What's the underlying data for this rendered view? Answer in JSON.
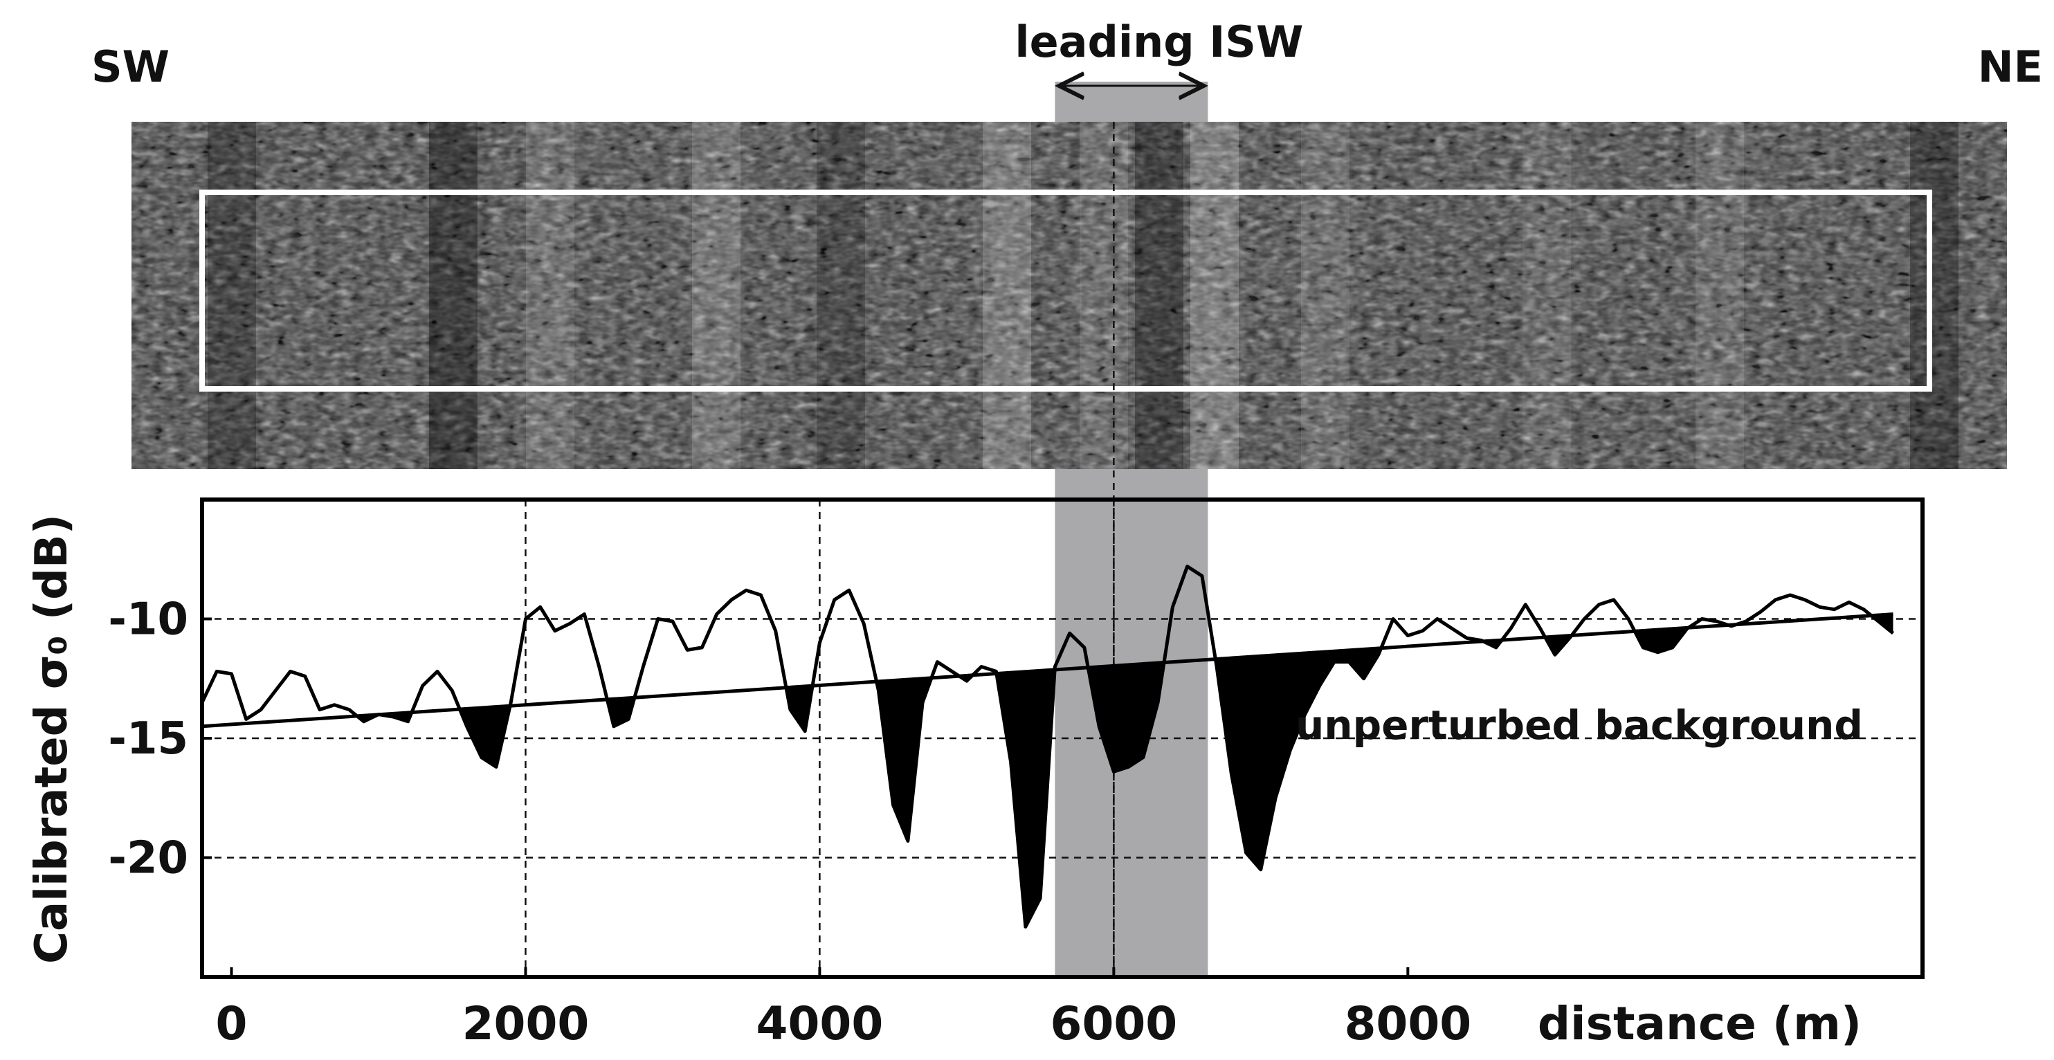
{
  "chart_data": {
    "type": "line",
    "title": "",
    "xlabel": "distance (m)",
    "ylabel": "Calibrated σ₀ (dB)",
    "xlim": [
      -200,
      11500
    ],
    "ylim": [
      -25,
      -5
    ],
    "x_ticks": [
      0,
      2000,
      4000,
      6000,
      8000
    ],
    "x_tick_labels": [
      "0",
      "2000",
      "4000",
      "6000",
      "8000"
    ],
    "y_ticks": [
      -10,
      -15,
      -20
    ],
    "y_tick_labels": [
      "-10",
      "-15",
      "-20"
    ],
    "grid": "dashed",
    "grid_x": [
      2000,
      4000,
      6000
    ],
    "grid_y": [
      -10,
      -15,
      -20
    ],
    "image_strip": {
      "left_label": "SW",
      "right_label": "NE",
      "texture": "grayscale SAR backscatter"
    },
    "annotations": {
      "isw_label": "leading ISW",
      "isw_band": [
        5600,
        6640
      ],
      "isw_center": 6000,
      "background_label": "unperturbed background"
    },
    "background_line": {
      "name": "unperturbed background",
      "x": [
        -200,
        11300
      ],
      "y": [
        -14.5,
        -9.8
      ]
    },
    "series": [
      {
        "name": "",
        "x": [
          -200,
          -100,
          0,
          100,
          200,
          300,
          400,
          500,
          600,
          700,
          800,
          900,
          1000,
          1100,
          1200,
          1300,
          1400,
          1500,
          1600,
          1700,
          1800,
          1900,
          2000,
          2100,
          2200,
          2300,
          2400,
          2500,
          2600,
          2700,
          2800,
          2900,
          3000,
          3100,
          3200,
          3300,
          3400,
          3500,
          3600,
          3700,
          3800,
          3900,
          4000,
          4100,
          4200,
          4300,
          4400,
          4500,
          4600,
          4700,
          4800,
          4900,
          5000,
          5100,
          5200,
          5300,
          5400,
          5500,
          5600,
          5700,
          5800,
          5900,
          6000,
          6100,
          6200,
          6300,
          6400,
          6500,
          6600,
          6700,
          6800,
          6900,
          7000,
          7100,
          7200,
          7300,
          7400,
          7500,
          7600,
          7700,
          7800,
          7900,
          8000,
          8100,
          8200,
          8300,
          8400,
          8500,
          8600,
          8700,
          8800,
          8900,
          9000,
          9100,
          9200,
          9300,
          9400,
          9500,
          9600,
          9700,
          9800,
          9900,
          10000,
          10100,
          10200,
          10300,
          10400,
          10500,
          10600,
          10700,
          10800,
          10900,
          11000,
          11100,
          11200,
          11300
        ],
        "y": [
          -13.5,
          -12.2,
          -12.3,
          -14.2,
          -13.8,
          -13,
          -12.2,
          -12.4,
          -13.8,
          -13.6,
          -13.8,
          -14.3,
          -14,
          -14.1,
          -14.3,
          -12.8,
          -12.2,
          -13,
          -14.5,
          -15.8,
          -16.2,
          -13.5,
          -10,
          -9.5,
          -10.5,
          -10.2,
          -9.8,
          -12,
          -14.5,
          -14.2,
          -12,
          -10,
          -10.1,
          -11.3,
          -11.2,
          -9.8,
          -9.2,
          -8.8,
          -9,
          -10.5,
          -13.8,
          -14.7,
          -11,
          -9.2,
          -8.8,
          -10.2,
          -13,
          -17.8,
          -19.3,
          -13.5,
          -11.8,
          -12.2,
          -12.6,
          -12,
          -12.2,
          -16,
          -22.9,
          -21.7,
          -12,
          -10.6,
          -11.2,
          -14.5,
          -16.4,
          -16.2,
          -15.8,
          -13.5,
          -9.5,
          -7.8,
          -8.2,
          -12,
          -16.5,
          -19.8,
          -20.5,
          -17.5,
          -15.5,
          -14,
          -12.8,
          -11.8,
          -11.8,
          -12.5,
          -11.5,
          -10,
          -10.7,
          -10.5,
          -10,
          -10.4,
          -10.8,
          -10.9,
          -11.2,
          -10.4,
          -9.4,
          -10.4,
          -11.5,
          -10.8,
          -10,
          -9.4,
          -9.2,
          -10,
          -11.2,
          -11.4,
          -11.2,
          -10.4,
          -10,
          -10.1,
          -10.3,
          -10.1,
          -9.7,
          -9.2,
          -9,
          -9.2,
          -9.5,
          -9.6,
          -9.3,
          -9.6,
          -10.1,
          -10.6
        ]
      }
    ]
  }
}
